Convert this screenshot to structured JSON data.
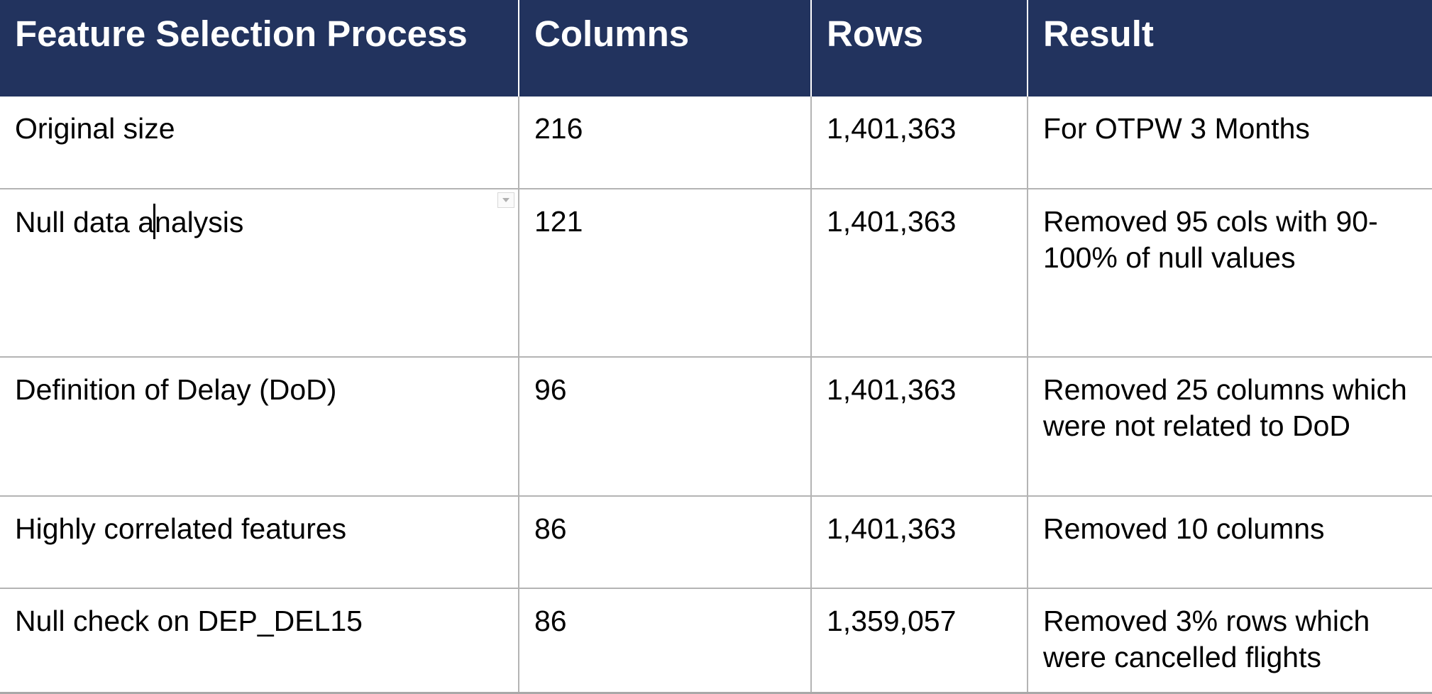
{
  "table": {
    "headers": [
      "Feature Selection Process",
      "Columns",
      "Rows",
      "Result"
    ],
    "rows": [
      {
        "process": "Original size",
        "columns": "216",
        "rows": "1,401,363",
        "result": "For OTPW 3 Months"
      },
      {
        "process_before_cursor": "Null data a",
        "process_after_cursor": "nalysis",
        "columns": "121",
        "rows": "1,401,363",
        "result": "Removed 95 cols with 90-100% of null values"
      },
      {
        "process": "Definition of Delay (DoD)",
        "columns": "96",
        "rows": "1,401,363",
        "result": "Removed 25 columns which were not related to DoD"
      },
      {
        "process": "Highly correlated features",
        "columns": "86",
        "rows": "1,401,363",
        "result": "Removed 10 columns"
      },
      {
        "process": "Null check on DEP_DEL15",
        "columns": "86",
        "rows": "1,359,057",
        "result": "Removed 3% rows which were cancelled flights"
      }
    ]
  },
  "colors": {
    "header_bg": "#22335e",
    "header_text": "#ffffff",
    "grid_line": "#b4b4b4"
  },
  "icons": {
    "cell_menu": "chevron-down-icon",
    "text_cursor": "text-caret"
  }
}
